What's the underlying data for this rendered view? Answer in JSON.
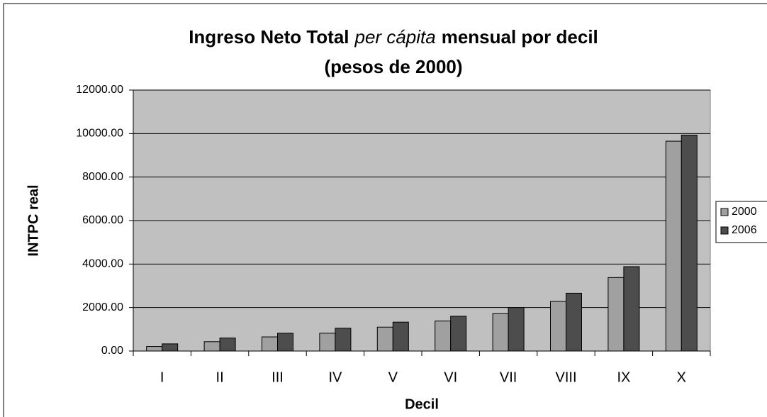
{
  "chart_data": {
    "type": "bar",
    "title": "Ingreso Neto Total",
    "title_italic": "per cápita",
    "title_end": "mensual por decil",
    "subtitle": "(pesos de 2000)",
    "x_label": "Decil",
    "y_label": "INTPC real",
    "categories": [
      "I",
      "II",
      "III",
      "IV",
      "V",
      "VI",
      "VII",
      "VIII",
      "IX",
      "X"
    ],
    "series": [
      {
        "name": "2000",
        "color": "#a0a0a0",
        "values": [
          210,
          430,
          650,
          820,
          1100,
          1380,
          1720,
          2280,
          3380,
          9650
        ]
      },
      {
        "name": "2006",
        "color": "#4d4d4d",
        "values": [
          330,
          600,
          820,
          1050,
          1330,
          1600,
          2000,
          2660,
          3880,
          9930
        ]
      }
    ],
    "ylim": [
      0,
      12000
    ],
    "yticks": [
      {
        "value": 0,
        "label": "0.00"
      },
      {
        "value": 2000,
        "label": "2000.00"
      },
      {
        "value": 4000,
        "label": "4000.00"
      },
      {
        "value": 6000,
        "label": "6000.00"
      },
      {
        "value": 8000,
        "label": "8000.00"
      },
      {
        "value": 10000,
        "label": "10000.00"
      },
      {
        "value": 12000,
        "label": "12000.00"
      }
    ],
    "grid": true,
    "plot_background": "#c0c0c0",
    "legend": "right"
  }
}
